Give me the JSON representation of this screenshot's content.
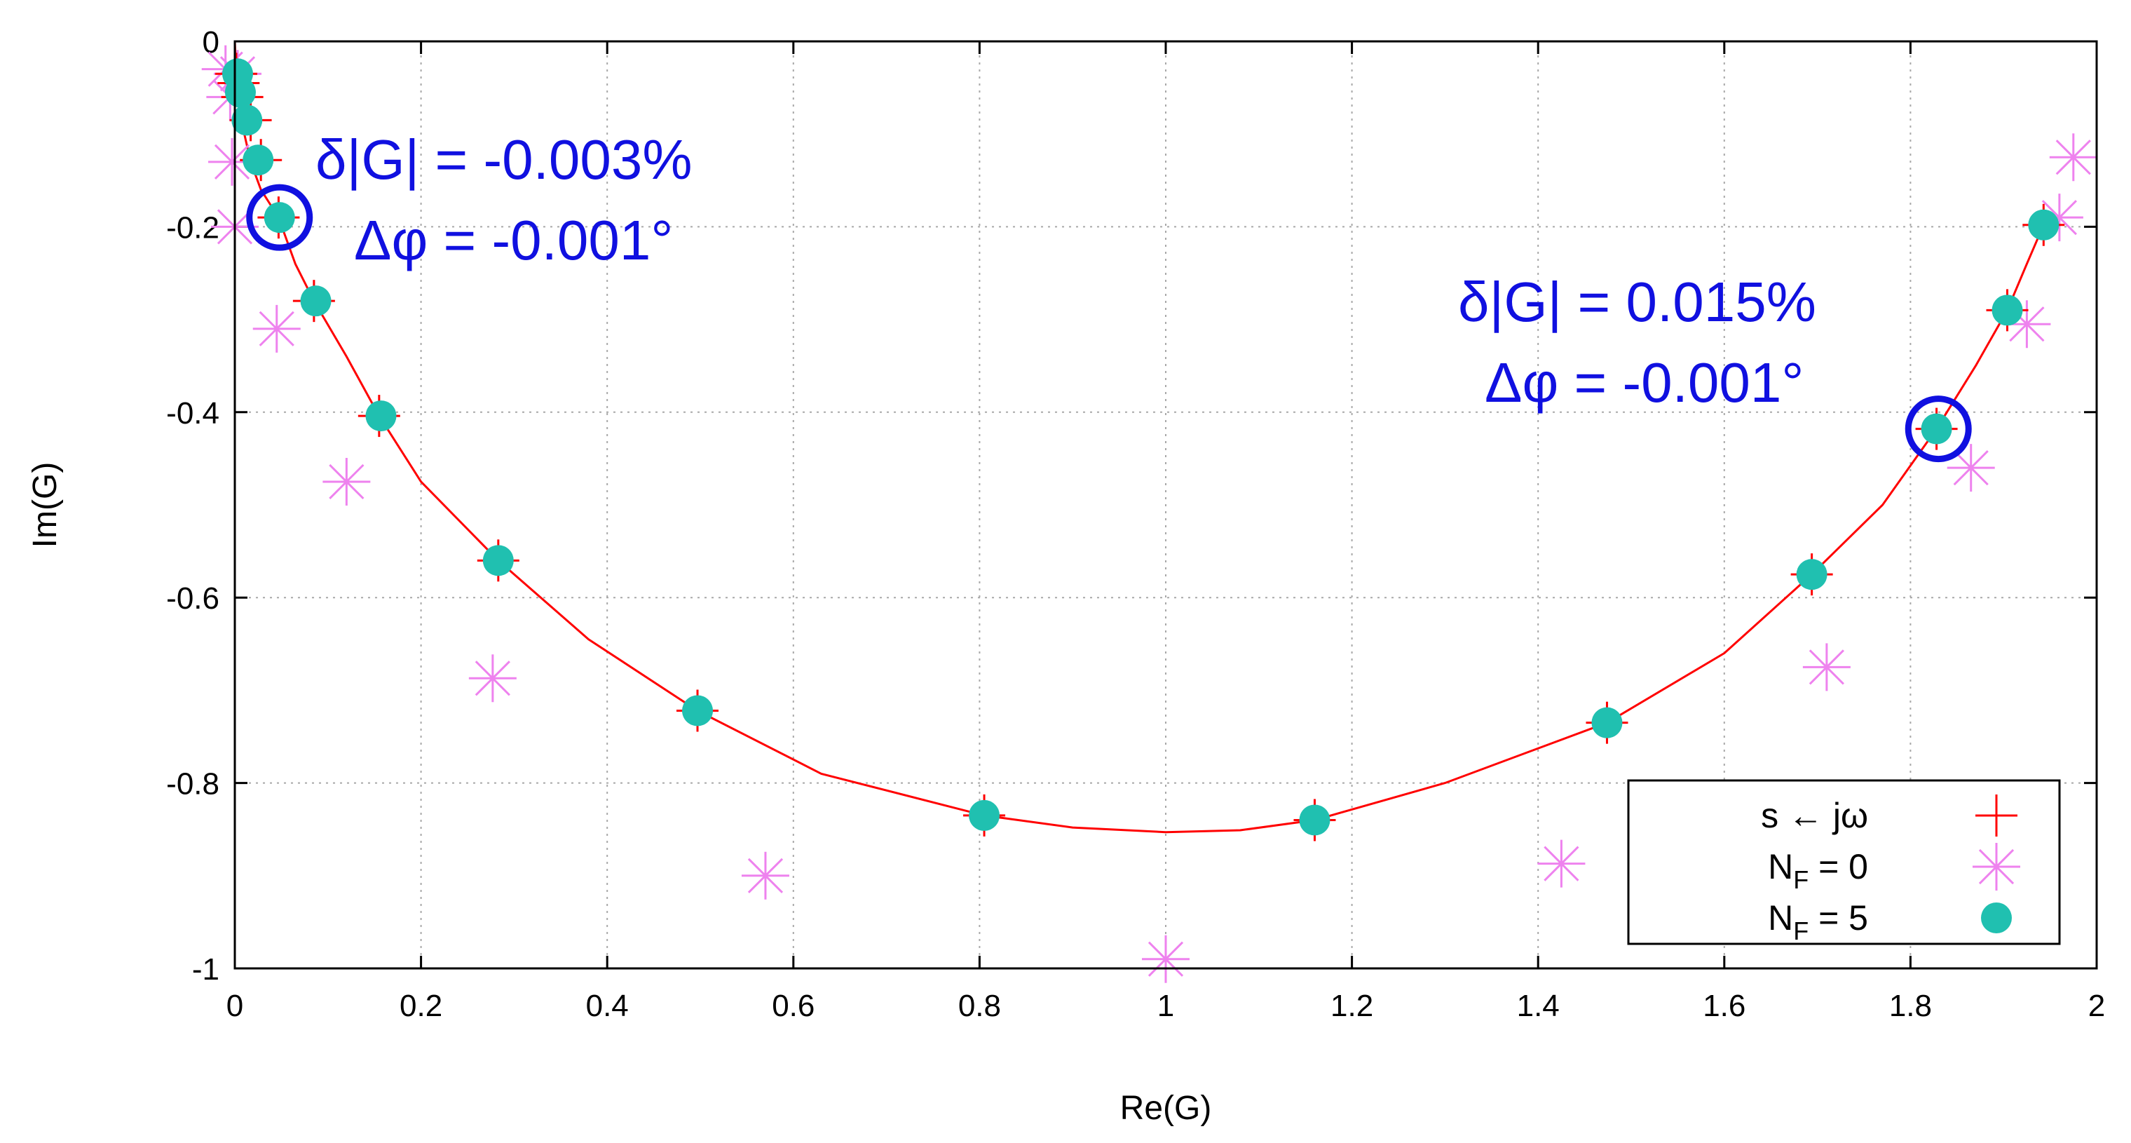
{
  "chart_data": {
    "type": "scatter",
    "title": "",
    "xlabel": "Re(G)",
    "ylabel": "Im(G)",
    "xlim": [
      0,
      2
    ],
    "ylim": [
      -1,
      0
    ],
    "grid": true,
    "x_ticks": [
      0,
      0.2,
      0.4,
      0.6,
      0.8,
      1,
      1.2,
      1.4,
      1.6,
      1.8,
      2
    ],
    "x_tick_labels": [
      "0",
      "0.2",
      "0.4",
      "0.6",
      "0.8",
      "1",
      "1.2",
      "1.4",
      "1.6",
      "1.8",
      "2"
    ],
    "y_ticks": [
      0,
      -0.2,
      -0.4,
      -0.6,
      -0.8,
      -1
    ],
    "y_tick_labels": [
      "0",
      "-0.2",
      "-0.4",
      "-0.6",
      "-0.8",
      "-1"
    ],
    "legend_position": "bottom-right",
    "series": [
      {
        "name": "s ← jω",
        "name_parts": [
          "s ← jω"
        ],
        "marker": "plus",
        "color": "#ff0000",
        "line": true,
        "x": [
          0.0,
          0.0015,
          0.004,
          0.008,
          0.017,
          0.028,
          0.047,
          0.065,
          0.085,
          0.12,
          0.155,
          0.2,
          0.283,
          0.38,
          0.497,
          0.63,
          0.805,
          0.9,
          1.0,
          1.08,
          1.16,
          1.3,
          1.474,
          1.6,
          1.694,
          1.77,
          1.828,
          1.87,
          1.904,
          1.925,
          1.943
        ],
        "y": [
          0.0,
          -0.035,
          -0.06,
          -0.09,
          -0.13,
          -0.16,
          -0.19,
          -0.24,
          -0.28,
          -0.34,
          -0.404,
          -0.475,
          -0.56,
          -0.645,
          -0.722,
          -0.79,
          -0.835,
          -0.848,
          -0.853,
          -0.851,
          -0.84,
          -0.8,
          -0.735,
          -0.66,
          -0.575,
          -0.5,
          -0.418,
          -0.35,
          -0.29,
          -0.24,
          -0.198
        ],
        "marker_x": [
          0.0015,
          0.004,
          0.008,
          0.017,
          0.028,
          0.047,
          0.085,
          0.155,
          0.283,
          0.497,
          0.805,
          1.16,
          1.474,
          1.694,
          1.828,
          1.904,
          1.943
        ],
        "marker_y": [
          -0.035,
          -0.045,
          -0.06,
          -0.085,
          -0.128,
          -0.19,
          -0.28,
          -0.404,
          -0.56,
          -0.722,
          -0.835,
          -0.84,
          -0.735,
          -0.575,
          -0.418,
          -0.29,
          -0.198
        ]
      },
      {
        "name": "N_F = 0",
        "name_parts": [
          "N",
          "F",
          " = 0"
        ],
        "marker": "star",
        "color": "#ee82ee",
        "x": [
          -0.01,
          -0.005,
          -0.003,
          0.0,
          0.003,
          0.045,
          0.12,
          0.277,
          0.57,
          1.0,
          1.425,
          1.71,
          1.865,
          1.925,
          1.96,
          1.975
        ],
        "y": [
          -0.03,
          -0.06,
          -0.13,
          -0.2,
          -0.035,
          -0.31,
          -0.475,
          -0.687,
          -0.9,
          -0.99,
          -0.887,
          -0.675,
          -0.46,
          -0.305,
          -0.19,
          -0.125
        ]
      },
      {
        "name": "N_F = 5",
        "name_parts": [
          "N",
          "F",
          " = 5"
        ],
        "marker": "circle",
        "color": "#20c0b0",
        "x": [
          0.003,
          0.006,
          0.013,
          0.025,
          0.048,
          0.087,
          0.157,
          0.283,
          0.497,
          0.805,
          1.16,
          1.474,
          1.694,
          1.828,
          1.904,
          1.943
        ],
        "y": [
          -0.035,
          -0.055,
          -0.085,
          -0.128,
          -0.19,
          -0.28,
          -0.404,
          -0.56,
          -0.722,
          -0.835,
          -0.84,
          -0.735,
          -0.575,
          -0.418,
          -0.29,
          -0.198
        ]
      }
    ],
    "highlights": [
      {
        "x": 0.048,
        "y": -0.19,
        "color": "#1010e0"
      },
      {
        "x": 1.83,
        "y": -0.418,
        "color": "#1010e0"
      }
    ],
    "annotations": [
      {
        "line1": "δ|G| = -0.003%",
        "line2": "Δφ = -0.001°",
        "color": "#1010e0"
      },
      {
        "line1": "δ|G| = 0.015%",
        "line2": "Δφ = -0.001°",
        "color": "#1010e0"
      }
    ]
  }
}
